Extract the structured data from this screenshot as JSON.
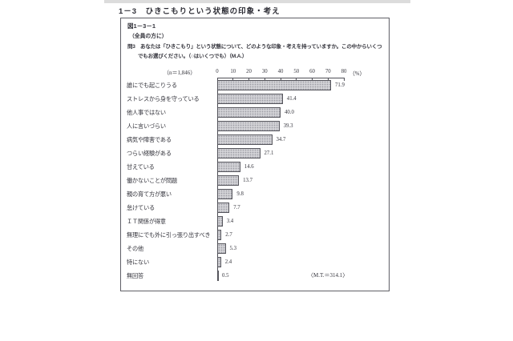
{
  "page_title": "1－3　ひきこもりという状態の印象・考え",
  "figure": {
    "fig_no": "図1－3－1",
    "audience": "（全員の方に）",
    "question_line1": "問3　あなたは「ひきこもり」という状態について、どのような印象・考えを持っていますか。この中からいくつ",
    "question_line2": "でもお選びください。（○はいくつでも）（M.A.）",
    "n_label": "（n＝1,846）",
    "mt_label": "〈M.T.＝314.1〉"
  },
  "chart_data": {
    "type": "bar",
    "orientation": "horizontal",
    "title": "ひきこもりという状態の印象・考え",
    "categories": [
      "誰にでも起こりうる",
      "ストレスから身を守っている",
      "他人事ではない",
      "人に言いづらい",
      "病気や障害である",
      "つらい経験がある",
      "甘えている",
      "働かないことが問題",
      "親の育て方が悪い",
      "怠けている",
      "ＩＴ関係が得意",
      "無理にでも外に引っ張り出すべき",
      "その他",
      "特にない",
      "無回答"
    ],
    "values": [
      71.9,
      41.4,
      40.0,
      39.3,
      34.7,
      27.1,
      14.6,
      13.7,
      9.8,
      7.7,
      3.4,
      2.7,
      5.3,
      2.4,
      0.5
    ],
    "xlim": [
      0,
      80
    ],
    "x_ticks": [
      0,
      10,
      20,
      30,
      40,
      50,
      60,
      70,
      80
    ],
    "x_unit": "（%）",
    "n": "1,846",
    "mt_total": "314.1",
    "grid": false,
    "legend": false,
    "bar_fill": "#d2d2d6",
    "bar_border": "#55555c",
    "axis_color": "#4e4e56"
  }
}
